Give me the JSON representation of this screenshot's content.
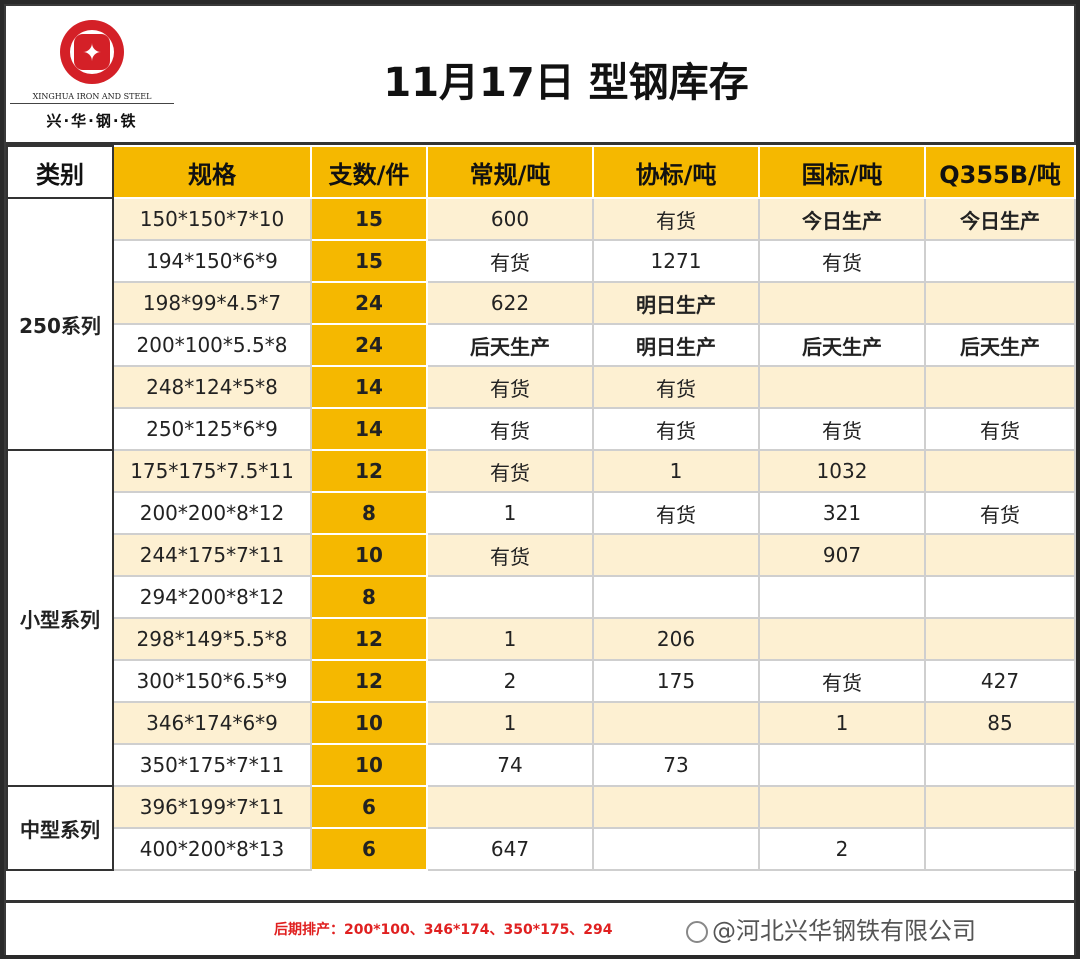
{
  "header": {
    "title": "11月17日 型钢库存",
    "logo_en": "XINGHUA IRON AND STEEL",
    "logo_cn": "兴·华·钢·铁"
  },
  "columns": [
    "类别",
    "规格",
    "支数/件",
    "常规/吨",
    "协标/吨",
    "国标/吨",
    "Q355B/吨"
  ],
  "groups": [
    {
      "category": "250系列",
      "rows": [
        {
          "spec": "150*150*7*10",
          "count": "15",
          "regular": "600",
          "assoc": "有货",
          "national": "今日生产",
          "q355b": "今日生产"
        },
        {
          "spec": "194*150*6*9",
          "count": "15",
          "regular": "有货",
          "assoc": "1271",
          "national": "有货",
          "q355b": ""
        },
        {
          "spec": "198*99*4.5*7",
          "count": "24",
          "regular": "622",
          "assoc": "明日生产",
          "national": "",
          "q355b": ""
        },
        {
          "spec": "200*100*5.5*8",
          "count": "24",
          "regular": "后天生产",
          "assoc": "明日生产",
          "national": "后天生产",
          "q355b": "后天生产"
        },
        {
          "spec": "248*124*5*8",
          "count": "14",
          "regular": "有货",
          "assoc": "有货",
          "national": "",
          "q355b": ""
        },
        {
          "spec": "250*125*6*9",
          "count": "14",
          "regular": "有货",
          "assoc": "有货",
          "national": "有货",
          "q355b": "有货"
        }
      ]
    },
    {
      "category": "小型系列",
      "rows": [
        {
          "spec": "175*175*7.5*11",
          "count": "12",
          "regular": "有货",
          "assoc": "1",
          "national": "1032",
          "q355b": ""
        },
        {
          "spec": "200*200*8*12",
          "count": "8",
          "regular": "1",
          "assoc": "有货",
          "national": "321",
          "q355b": "有货"
        },
        {
          "spec": "244*175*7*11",
          "count": "10",
          "regular": "有货",
          "assoc": "",
          "national": "907",
          "q355b": ""
        },
        {
          "spec": "294*200*8*12",
          "count": "8",
          "regular": "",
          "assoc": "",
          "national": "",
          "q355b": ""
        },
        {
          "spec": "298*149*5.5*8",
          "count": "12",
          "regular": "1",
          "assoc": "206",
          "national": "",
          "q355b": ""
        },
        {
          "spec": "300*150*6.5*9",
          "count": "12",
          "regular": "2",
          "assoc": "175",
          "national": "有货",
          "q355b": "427"
        },
        {
          "spec": "346*174*6*9",
          "count": "10",
          "regular": "1",
          "assoc": "",
          "national": "1",
          "q355b": "85"
        },
        {
          "spec": "350*175*7*11",
          "count": "10",
          "regular": "74",
          "assoc": "73",
          "national": "",
          "q355b": ""
        }
      ]
    },
    {
      "category": "中型系列",
      "rows": [
        {
          "spec": "396*199*7*11",
          "count": "6",
          "regular": "",
          "assoc": "",
          "national": "",
          "q355b": ""
        },
        {
          "spec": "400*200*8*13",
          "count": "6",
          "regular": "647",
          "assoc": "",
          "national": "2",
          "q355b": ""
        }
      ]
    }
  ],
  "footer": {
    "note": "后期排产：200*100、346*174、350*175、294",
    "watermark": "@河北兴华钢铁有限公司"
  },
  "colors": {
    "accent": "#f5b800",
    "stripe": "#fdf0d2",
    "status_red": "#e02020"
  }
}
